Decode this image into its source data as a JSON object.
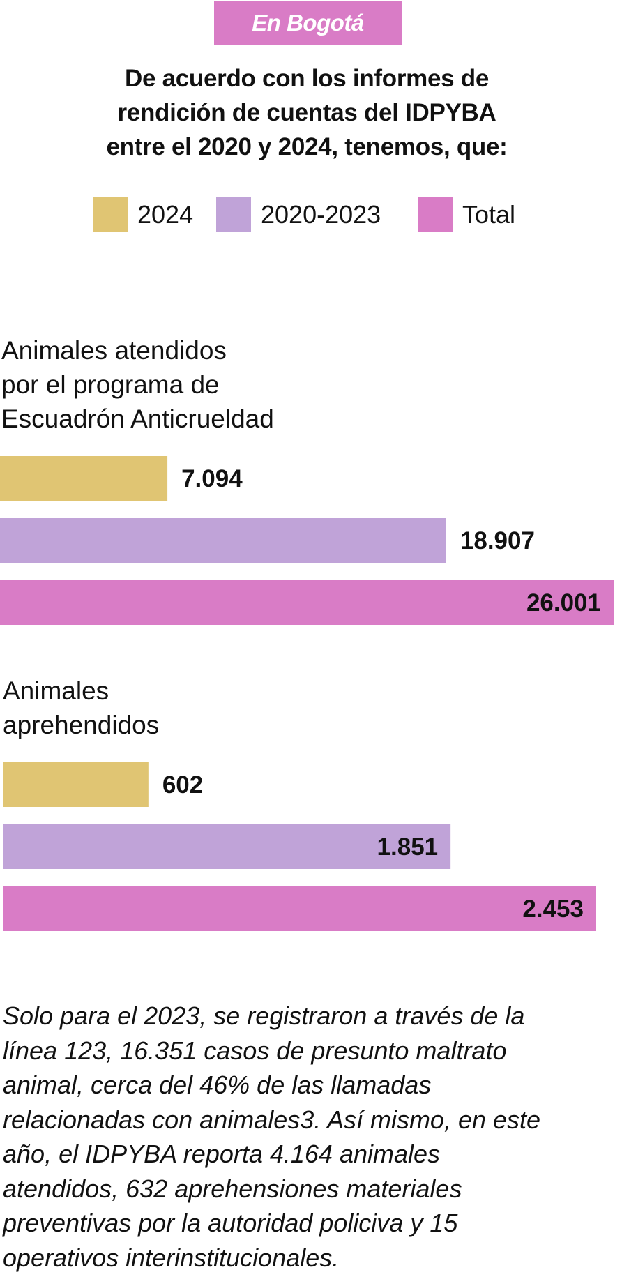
{
  "tag": "En Bogotá",
  "headline": [
    "De acuerdo con los informes de",
    "rendición de cuentas del IDPYBA",
    "entre el 2020 y 2024, tenemos, que:"
  ],
  "legend": [
    {
      "label": "2024",
      "color": "#e0c573"
    },
    {
      "label": "2020-2023",
      "color": "#c0a3d8"
    },
    {
      "label": "Total",
      "color": "#d97cc6"
    }
  ],
  "chart_data": [
    {
      "type": "bar",
      "orientation": "horizontal",
      "title": [
        "Animales atendidos",
        "por el programa de",
        "Escuadrón Anticrueldad"
      ],
      "categories": [
        "2024",
        "2020-2023",
        "Total"
      ],
      "values": [
        7094,
        18907,
        26001
      ],
      "value_labels": [
        "7.094",
        "18.907",
        "26.001"
      ],
      "colors": [
        "#e0c573",
        "#c0a3d8",
        "#d97cc6"
      ]
    },
    {
      "type": "bar",
      "orientation": "horizontal",
      "title": [
        "Animales",
        "aprehendidos"
      ],
      "categories": [
        "2024",
        "2020-2023",
        "Total"
      ],
      "values": [
        602,
        1851,
        2453
      ],
      "value_labels": [
        "602",
        "1.851",
        "2.453"
      ],
      "colors": [
        "#e0c573",
        "#c0a3d8",
        "#d97cc6"
      ]
    }
  ],
  "footnote": [
    "Solo para el 2023, se registraron a través de la",
    "línea 123, 16.351 casos de presunto maltrato",
    "animal, cerca del 46% de las llamadas",
    "relacionadas con animales3. Así mismo, en este",
    "año, el IDPYBA reporta 4.164 animales",
    "atendidos, 632 aprehensiones materiales",
    "preventivas por la autoridad policiva y 15",
    "operativos interinstitucionales."
  ]
}
